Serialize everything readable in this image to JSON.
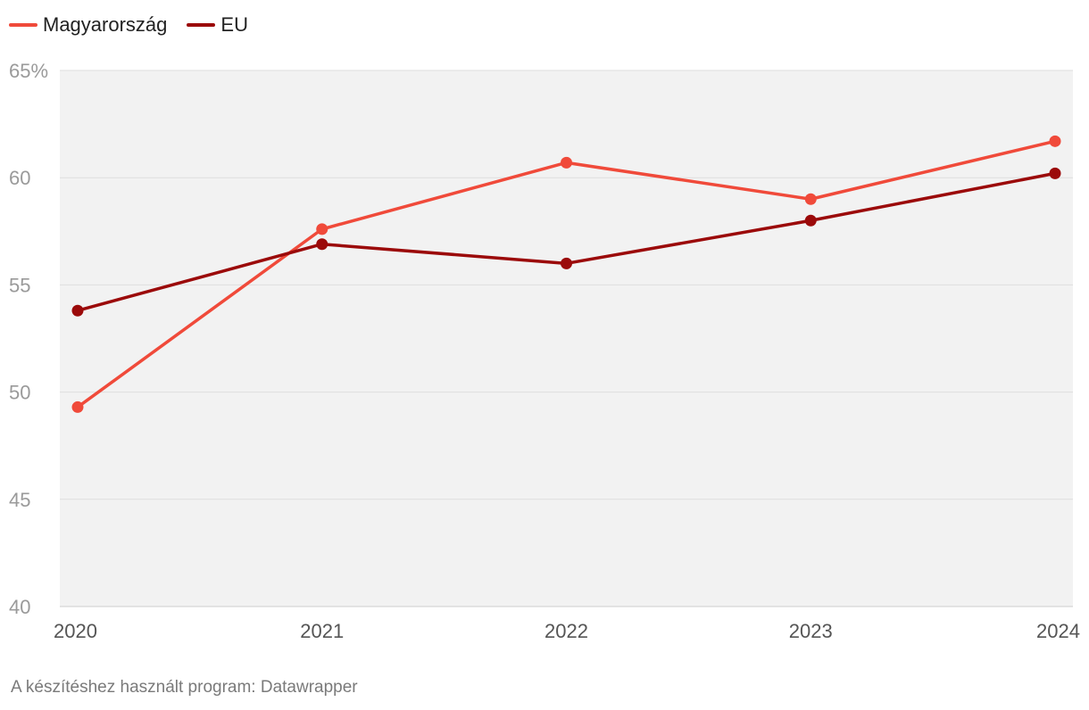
{
  "chart_data": {
    "type": "line",
    "title": "",
    "xlabel": "",
    "ylabel": "",
    "categories": [
      "2020",
      "2021",
      "2022",
      "2023",
      "2024"
    ],
    "ylim": [
      40,
      65
    ],
    "yticks": [
      65,
      60,
      55,
      50,
      45,
      40
    ],
    "ytick_labels": [
      "65%",
      "60",
      "55",
      "50",
      "45",
      "40"
    ],
    "grid": true,
    "legend_position": "top-left",
    "series": [
      {
        "name": "Magyarország",
        "color": "#f04a3a",
        "values": [
          49.3,
          57.6,
          60.7,
          59.0,
          61.7
        ]
      },
      {
        "name": "EU",
        "color": "#9b0a0a",
        "values": [
          53.8,
          56.9,
          56.0,
          58.0,
          60.2
        ]
      }
    ]
  },
  "legend": {
    "items": [
      {
        "label": "Magyarország",
        "color": "#f04a3a"
      },
      {
        "label": "EU",
        "color": "#9b0a0a"
      }
    ]
  },
  "footer": {
    "source": "A készítéshez használt program: Datawrapper"
  },
  "colors": {
    "plot_background": "#f2f2f2",
    "gridline": "#dedede",
    "axis": "#cccccc"
  }
}
